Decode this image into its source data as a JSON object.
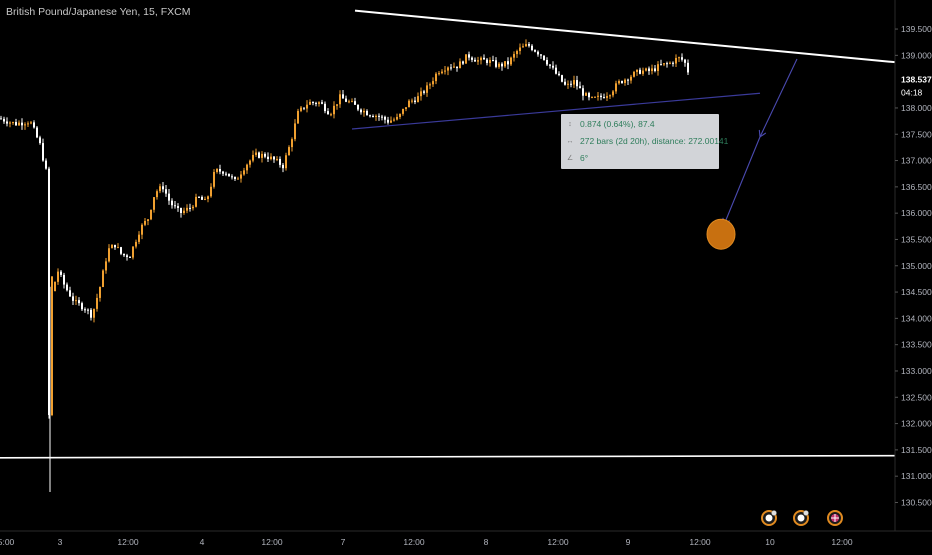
{
  "header": {
    "title": "British Pound/Japanese Yen, 15, FXCM"
  },
  "price_axis": {
    "ticks": [
      "139.500",
      "139.000",
      "138.000",
      "137.500",
      "137.000",
      "136.500",
      "136.000",
      "135.500",
      "135.000",
      "134.500",
      "134.000",
      "133.500",
      "133.000",
      "132.500",
      "132.000",
      "131.500",
      "131.000",
      "130.500"
    ],
    "current_price": "138.537",
    "countdown": "04:18"
  },
  "time_axis": {
    "ticks": [
      "5:00",
      "3",
      "12:00",
      "4",
      "12:00",
      "7",
      "12:00",
      "8",
      "12:00",
      "9",
      "12:00",
      "10",
      "12:00"
    ]
  },
  "measure_box": {
    "price_range": "0.874 (0.64%), 87.4",
    "bars_range": "272 bars (2d 20h), distance: 272.00141",
    "angle": "6°"
  },
  "colors": {
    "background": "#000000",
    "candle_up": "#f0a030",
    "candle_down": "#ffffff",
    "trendline": "#ffffff",
    "support_line": "#3a3a9a",
    "arrow": "#4a4ab0",
    "target_marker": "#c87010",
    "axis_text": "#b2b5be"
  },
  "event_icons": [
    "event-icon",
    "event-icon",
    "uk-flag-icon"
  ],
  "chart_data": {
    "type": "candlestick",
    "title": "British Pound/Japanese Yen, 15, FXCM",
    "ylim": [
      130.3,
      139.9
    ],
    "price_path": [
      [
        0,
        137.8
      ],
      [
        15,
        137.7
      ],
      [
        30,
        137.75
      ],
      [
        40,
        137.3
      ],
      [
        46,
        136.8
      ],
      [
        48,
        131.5
      ],
      [
        50,
        132.8
      ],
      [
        52,
        134.5
      ],
      [
        58,
        134.9
      ],
      [
        65,
        134.6
      ],
      [
        75,
        134.3
      ],
      [
        85,
        134.2
      ],
      [
        92,
        134.05
      ],
      [
        100,
        134.6
      ],
      [
        108,
        135.3
      ],
      [
        115,
        135.4
      ],
      [
        122,
        135.2
      ],
      [
        130,
        135.2
      ],
      [
        140,
        135.7
      ],
      [
        148,
        135.9
      ],
      [
        155,
        136.4
      ],
      [
        163,
        136.5
      ],
      [
        170,
        136.2
      ],
      [
        180,
        136.0
      ],
      [
        190,
        136.1
      ],
      [
        198,
        136.3
      ],
      [
        206,
        136.2
      ],
      [
        215,
        136.8
      ],
      [
        225,
        136.8
      ],
      [
        235,
        136.6
      ],
      [
        245,
        136.9
      ],
      [
        255,
        137.1
      ],
      [
        265,
        137.1
      ],
      [
        275,
        137.0
      ],
      [
        283,
        136.9
      ],
      [
        290,
        137.3
      ],
      [
        298,
        137.9
      ],
      [
        308,
        138.1
      ],
      [
        320,
        138.1
      ],
      [
        330,
        137.9
      ],
      [
        340,
        138.2
      ],
      [
        350,
        138.1
      ],
      [
        358,
        138.0
      ],
      [
        368,
        137.9
      ],
      [
        378,
        137.85
      ],
      [
        388,
        137.75
      ],
      [
        398,
        137.8
      ],
      [
        408,
        138.1
      ],
      [
        418,
        138.2
      ],
      [
        428,
        138.4
      ],
      [
        438,
        138.7
      ],
      [
        448,
        138.8
      ],
      [
        458,
        138.8
      ],
      [
        468,
        139.0
      ],
      [
        478,
        138.9
      ],
      [
        488,
        138.9
      ],
      [
        498,
        138.8
      ],
      [
        508,
        138.85
      ],
      [
        518,
        139.1
      ],
      [
        528,
        139.2
      ],
      [
        535,
        139.1
      ],
      [
        542,
        139.0
      ],
      [
        550,
        138.8
      ],
      [
        558,
        138.6
      ],
      [
        566,
        138.4
      ],
      [
        574,
        138.5
      ],
      [
        582,
        138.3
      ],
      [
        590,
        138.15
      ],
      [
        600,
        138.2
      ],
      [
        610,
        138.3
      ],
      [
        620,
        138.5
      ],
      [
        630,
        138.6
      ],
      [
        640,
        138.7
      ],
      [
        650,
        138.7
      ],
      [
        660,
        138.8
      ],
      [
        670,
        138.85
      ],
      [
        678,
        138.95
      ],
      [
        684,
        138.9
      ],
      [
        688,
        138.7
      ]
    ],
    "trendlines": [
      {
        "name": "resistance",
        "from": [
          355,
          139.85
        ],
        "to": [
          895,
          138.87
        ]
      },
      {
        "name": "support",
        "from": [
          352,
          137.6
        ],
        "to": [
          760,
          138.28
        ]
      },
      {
        "name": "horizontal",
        "from": [
          0,
          131.35
        ],
        "to": [
          895,
          131.39
        ]
      }
    ],
    "projection": {
      "from": [
        797,
        138.93
      ],
      "via": [
        760,
        137.45
      ],
      "to": [
        724,
        135.78
      ]
    },
    "target": [
      721,
      135.6
    ]
  }
}
